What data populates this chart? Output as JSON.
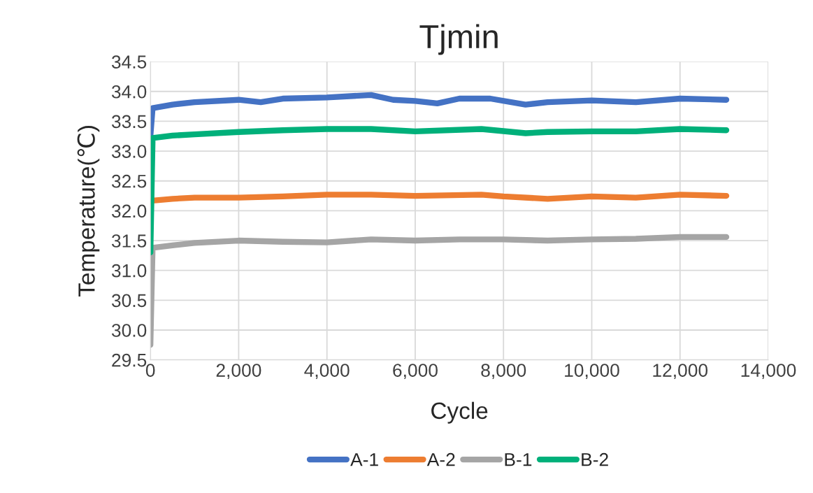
{
  "chart_data": {
    "type": "line",
    "title": "Tjmin",
    "xlabel": "Cycle",
    "ylabel": "Temperature(℃)",
    "xlim": [
      0,
      14000
    ],
    "xticks": [
      {
        "value": 0,
        "label": "0"
      },
      {
        "value": 2000,
        "label": "2,000"
      },
      {
        "value": 4000,
        "label": "4,000"
      },
      {
        "value": 6000,
        "label": "6,000"
      },
      {
        "value": 8000,
        "label": "8,000"
      },
      {
        "value": 10000,
        "label": "10,000"
      },
      {
        "value": 12000,
        "label": "12,000"
      },
      {
        "value": 14000,
        "label": "14,000"
      }
    ],
    "ylim": [
      29.5,
      34.5
    ],
    "yticks": [
      {
        "value": 29.5,
        "label": "29.5"
      },
      {
        "value": 30.0,
        "label": "30.0"
      },
      {
        "value": 30.5,
        "label": "30.5"
      },
      {
        "value": 31.0,
        "label": "31.0"
      },
      {
        "value": 31.5,
        "label": "31.5"
      },
      {
        "value": 32.0,
        "label": "32.0"
      },
      {
        "value": 32.5,
        "label": "32.5"
      },
      {
        "value": 33.0,
        "label": "33.0"
      },
      {
        "value": 33.5,
        "label": "33.5"
      },
      {
        "value": 34.0,
        "label": "34.0"
      },
      {
        "value": 34.5,
        "label": "34.5"
      }
    ],
    "grid": true,
    "legend": "bottom",
    "marker": "none",
    "line_style": "solid",
    "series": [
      {
        "name": "A-1",
        "color": "#4472c4",
        "x": [
          0,
          50,
          500,
          1000,
          2000,
          2500,
          3000,
          4000,
          5000,
          5500,
          6000,
          6500,
          7000,
          7700,
          8500,
          9000,
          10000,
          11000,
          12000,
          13050
        ],
        "values": [
          33.25,
          33.72,
          33.78,
          33.82,
          33.86,
          33.82,
          33.88,
          33.9,
          33.94,
          33.86,
          33.84,
          33.8,
          33.88,
          33.88,
          33.78,
          33.82,
          33.85,
          33.82,
          33.88,
          33.86
        ]
      },
      {
        "name": "A-2",
        "color": "#ed7d31",
        "x": [
          0,
          50,
          500,
          1000,
          2000,
          3000,
          4000,
          5000,
          6000,
          7500,
          8000,
          9000,
          10000,
          11000,
          12000,
          13050
        ],
        "values": [
          32.15,
          32.17,
          32.2,
          32.22,
          32.22,
          32.24,
          32.27,
          32.27,
          32.25,
          32.27,
          32.24,
          32.2,
          32.24,
          32.22,
          32.27,
          32.25
        ]
      },
      {
        "name": "B-1",
        "color": "#a5a5a5",
        "x": [
          0,
          50,
          500,
          1000,
          2000,
          3000,
          4000,
          5000,
          6000,
          7000,
          8000,
          9000,
          10000,
          11000,
          12000,
          13050
        ],
        "values": [
          29.75,
          31.38,
          31.42,
          31.46,
          31.5,
          31.48,
          31.47,
          31.52,
          31.5,
          31.52,
          31.52,
          31.5,
          31.52,
          31.53,
          31.56,
          31.56
        ]
      },
      {
        "name": "B-2",
        "color": "#00b07a",
        "x": [
          0,
          50,
          500,
          1000,
          2000,
          3000,
          4000,
          5000,
          6000,
          7500,
          8500,
          9000,
          10000,
          11000,
          12000,
          13050
        ],
        "values": [
          31.3,
          33.22,
          33.26,
          33.28,
          33.32,
          33.35,
          33.37,
          33.37,
          33.33,
          33.37,
          33.3,
          33.32,
          33.33,
          33.33,
          33.37,
          33.35
        ]
      }
    ]
  }
}
